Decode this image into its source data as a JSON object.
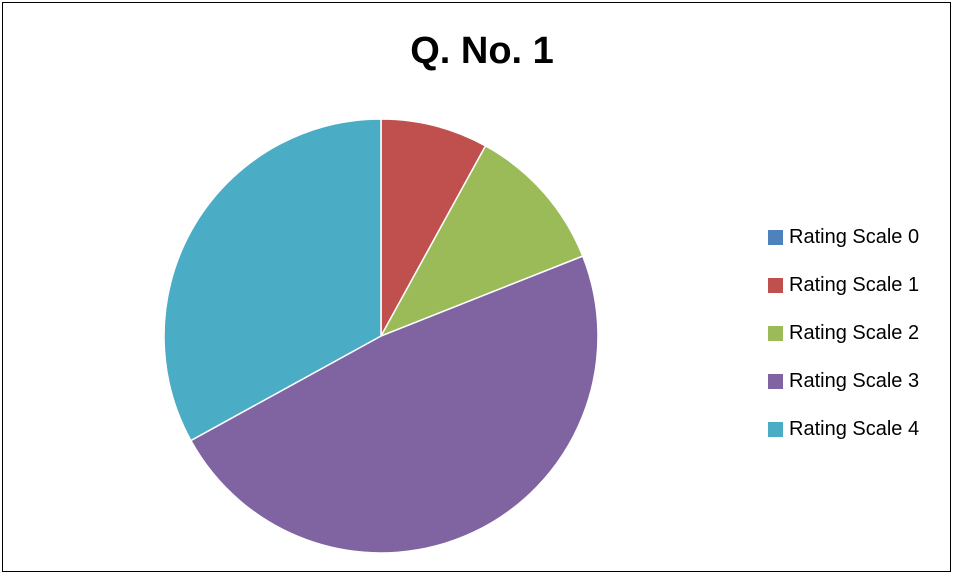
{
  "chart_data": {
    "type": "pie",
    "title": "Q. No. 1",
    "categories": [
      "Rating Scale 0",
      "Rating Scale 1",
      "Rating Scale 2",
      "Rating Scale 3",
      "Rating Scale 4"
    ],
    "values": [
      0,
      8,
      11,
      48,
      33
    ],
    "colors": [
      "#4F81BD",
      "#C0504D",
      "#9BBB59",
      "#8064A2",
      "#4BACC6"
    ],
    "start_angle": "12 o'clock",
    "direction": "clockwise",
    "legend_position": "right"
  }
}
